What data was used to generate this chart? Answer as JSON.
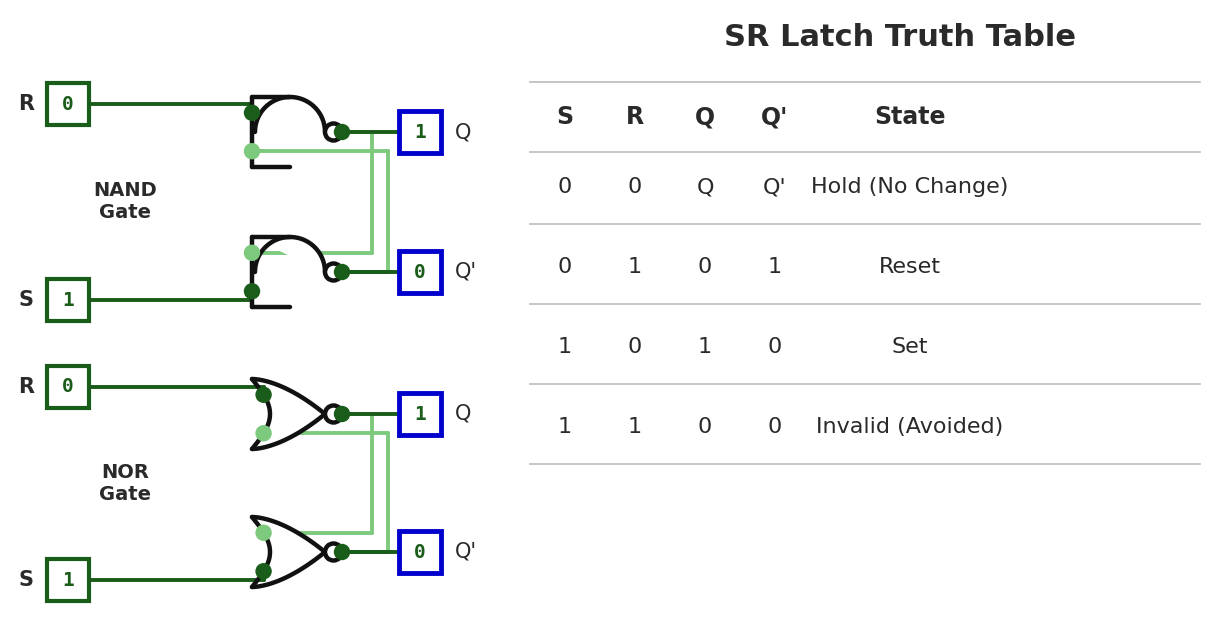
{
  "title": "SR Latch Truth Table",
  "bg_color": "#ffffff",
  "title_color": "#2a2a2a",
  "title_fontsize": 22,
  "gate_line_color": "#1a5c1a",
  "gate_light_color": "#7dc97d",
  "gate_black": "#111111",
  "box_dark_green": "#1a5c1a",
  "box_blue": "#0000cc",
  "label_color": "#2a2a2a",
  "table_header": [
    "S",
    "R",
    "Q",
    "Q'",
    "State"
  ],
  "table_rows": [
    [
      "0",
      "0",
      "Q",
      "Q'",
      "Hold (No Change)"
    ],
    [
      "0",
      "1",
      "0",
      "1",
      "Reset"
    ],
    [
      "1",
      "0",
      "1",
      "0",
      "Set"
    ],
    [
      "1",
      "1",
      "0",
      "0",
      "Invalid (Avoided)"
    ]
  ],
  "nand_label": "NAND\nGate",
  "nor_label": "NOR\nGate",
  "r_top_val": "0",
  "s_top_val": "1",
  "q_top_val": "1",
  "qbar_top_val": "0",
  "r_bot_val": "0",
  "s_bot_val": "1",
  "q_bot_val": "1",
  "qbar_bot_val": "0",
  "divider_color": "#bbbbbb",
  "table_text_color": "#2a2a2a",
  "header_fontsize": 17,
  "cell_fontsize": 16
}
